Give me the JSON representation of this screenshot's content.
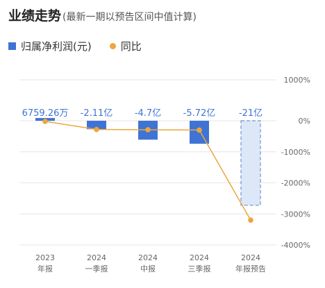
{
  "header": {
    "title": "业绩走势",
    "subtitle": "(最新一期以预告区间中值计算)"
  },
  "legend": {
    "bar_label": "归属净利润(元)",
    "line_label": "同比"
  },
  "colors": {
    "bar": "#3f74d4",
    "forecast_bar_fill": "#dce8f8",
    "forecast_bar_stroke": "#6d95d6",
    "line": "#eba63d",
    "label": "#3f74d4",
    "grid": "#e6e6e6",
    "axis_text": "#666666"
  },
  "chart_data": {
    "type": "bar",
    "categories": [
      [
        "2023",
        "年报"
      ],
      [
        "2024",
        "一季报"
      ],
      [
        "2024",
        "中报"
      ],
      [
        "2024",
        "三季报"
      ],
      [
        "2024",
        "年报预告"
      ]
    ],
    "series": [
      {
        "name": "归属净利润(元)",
        "type": "bar",
        "values_yi": [
          0.675926,
          -2.11,
          -4.7,
          -5.72,
          -21
        ],
        "labels": [
          "6759.26万",
          "-2.11亿",
          "-4.7亿",
          "-5.72亿",
          "-21亿"
        ],
        "forecast": [
          false,
          false,
          false,
          false,
          true
        ]
      },
      {
        "name": "同比",
        "type": "line",
        "axis": "right",
        "values_pct": [
          -20,
          -280,
          -290,
          -300,
          -3200
        ]
      }
    ],
    "y_right": {
      "ticks": [
        1000,
        0,
        -1000,
        -2000,
        -3000,
        -4000
      ],
      "tick_labels": [
        "1000%",
        "0%",
        "-1000%",
        "-2000%",
        "-3000%",
        "-4000%"
      ],
      "range": [
        -4000,
        1000
      ]
    },
    "grid": true
  }
}
